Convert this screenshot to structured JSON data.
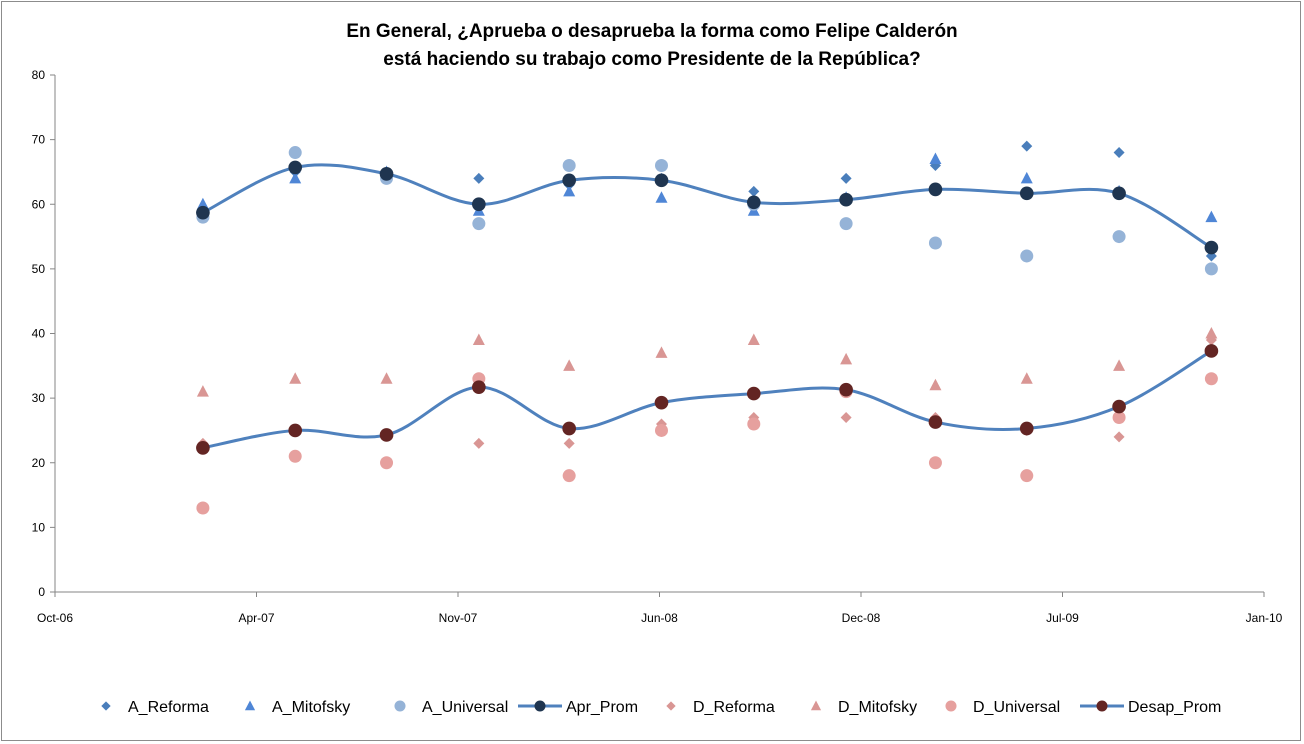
{
  "chart_data": {
    "type": "scatter",
    "title_line1": "En General, ¿Aprueba o desaprueba la forma como Felipe Calderón",
    "title_line2": "está haciendo su trabajo como Presidente de la República?",
    "xlabel": "",
    "ylabel": "",
    "ylim": [
      0,
      80
    ],
    "yticks": [
      "0",
      "10",
      "20",
      "30",
      "40",
      "50",
      "60",
      "70",
      "80"
    ],
    "xlim": [
      "2006-10-01",
      "2010-01-31"
    ],
    "xticks": [
      "Oct-06",
      "Apr-07",
      "Nov-07",
      "Jun-08",
      "Dec-08",
      "Jul-09",
      "Jan-10"
    ],
    "grid": false,
    "legend_position": "bottom",
    "x": [
      "2007-02-27",
      "2007-05-31",
      "2007-08-31",
      "2007-12-02",
      "2008-03-02",
      "2008-06-03",
      "2008-09-04",
      "2008-12-06",
      "2009-03-06",
      "2009-06-06",
      "2009-09-07",
      "2009-12-09"
    ],
    "series": [
      {
        "name": "A_Reforma",
        "marker": "diamond",
        "line": false,
        "color": "#4a7ebb",
        "values": [
          58,
          65,
          65,
          64,
          63,
          64,
          62,
          64,
          66,
          69,
          68,
          52
        ]
      },
      {
        "name": "A_Mitofsky",
        "marker": "triangle",
        "line": false,
        "color": "#4f86d6",
        "values": [
          60,
          64,
          65,
          59,
          62,
          61,
          59,
          61,
          67,
          64,
          62,
          58
        ]
      },
      {
        "name": "A_Universal",
        "marker": "circle",
        "line": false,
        "color": "#95b3d7",
        "values": [
          58,
          68,
          64,
          57,
          66,
          66,
          60,
          57,
          54,
          52,
          55,
          50
        ]
      },
      {
        "name": "Apr_Prom",
        "marker": "circle",
        "line": true,
        "color": "#1f3550",
        "line_color": "#4f81bd",
        "values": [
          58.7,
          65.7,
          64.7,
          60.0,
          63.7,
          63.7,
          60.3,
          60.7,
          62.3,
          61.7,
          61.7,
          53.3
        ]
      },
      {
        "name": "D_Reforma",
        "marker": "diamond",
        "line": false,
        "color": "#d99694",
        "values": [
          23,
          21,
          20,
          23,
          23,
          26,
          27,
          27,
          27,
          25,
          24,
          39
        ]
      },
      {
        "name": "D_Mitofsky",
        "marker": "triangle",
        "line": false,
        "color": "#d99694",
        "values": [
          31,
          33,
          33,
          39,
          35,
          37,
          39,
          36,
          32,
          33,
          35,
          40
        ]
      },
      {
        "name": "D_Universal",
        "marker": "circle",
        "line": false,
        "color": "#e6a09e",
        "values": [
          13,
          21,
          20,
          33,
          18,
          25,
          26,
          31,
          20,
          18,
          27,
          33
        ]
      },
      {
        "name": "Desap_Prom",
        "marker": "circle",
        "line": true,
        "color": "#632523",
        "line_color": "#4f81bd",
        "values": [
          22.3,
          25.0,
          24.3,
          31.7,
          25.3,
          29.3,
          30.7,
          31.3,
          26.3,
          25.3,
          28.7,
          37.3
        ]
      }
    ]
  }
}
